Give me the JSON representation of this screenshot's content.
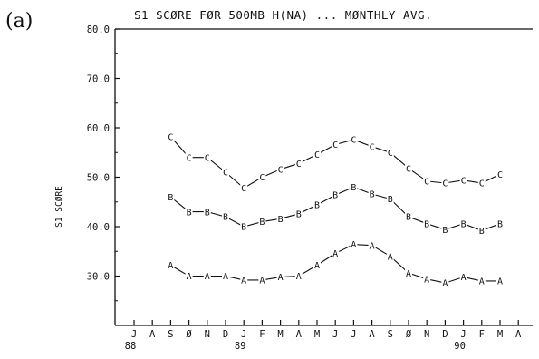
{
  "panel_label": "(a)",
  "chart_data": {
    "type": "line",
    "title": "S1 SCØRE FØR 500MB H(NA) ... MØNTHLY AVG.",
    "xlabel": "",
    "ylabel": "S1 SCØRE",
    "ylim": [
      20,
      80
    ],
    "yticks": [
      30,
      40,
      50,
      60,
      70,
      80
    ],
    "ytick_labels": [
      "30.0",
      "40.0",
      "50.0",
      "60.0",
      "70.0",
      "80.0"
    ],
    "x_tick_labels": [
      "J",
      "A",
      "S",
      "Ø",
      "N",
      "D",
      "J",
      "F",
      "M",
      "A",
      "M",
      "J",
      "J",
      "A",
      "S",
      "Ø",
      "N",
      "D",
      "J",
      "F",
      "M",
      "A"
    ],
    "x_year_labels": [
      {
        "at": 0,
        "label": "88"
      },
      {
        "at": 6,
        "label": "89"
      },
      {
        "at": 18,
        "label": "90"
      }
    ],
    "grid": false,
    "series": [
      {
        "marker": "C",
        "x": [
          2,
          3,
          4,
          5,
          6,
          7,
          8,
          9,
          10,
          11,
          12,
          13,
          14,
          15,
          16,
          17,
          18,
          19,
          20
        ],
        "values": [
          58.2,
          54.0,
          54.0,
          51.0,
          47.8,
          50.0,
          51.6,
          52.8,
          54.6,
          56.6,
          57.6,
          56.2,
          55.0,
          51.8,
          49.2,
          48.8,
          49.4,
          48.8,
          50.6
        ]
      },
      {
        "marker": "B",
        "x": [
          2,
          3,
          4,
          5,
          6,
          7,
          8,
          9,
          10,
          11,
          12,
          13,
          14,
          15,
          16,
          17,
          18,
          19,
          20
        ],
        "values": [
          46.0,
          43.0,
          43.0,
          42.0,
          40.0,
          41.0,
          41.6,
          42.6,
          44.4,
          46.4,
          48.0,
          46.6,
          45.6,
          42.0,
          40.6,
          39.4,
          40.6,
          39.2,
          40.6
        ]
      },
      {
        "marker": "A",
        "x": [
          2,
          3,
          4,
          5,
          6,
          7,
          8,
          9,
          10,
          11,
          12,
          13,
          14,
          15,
          16,
          17,
          18,
          19,
          20
        ],
        "values": [
          32.2,
          30.0,
          30.0,
          30.0,
          29.2,
          29.2,
          29.8,
          30.0,
          32.2,
          34.6,
          36.4,
          36.2,
          34.0,
          30.6,
          29.4,
          28.6,
          29.8,
          29.0,
          29.0
        ]
      }
    ]
  }
}
